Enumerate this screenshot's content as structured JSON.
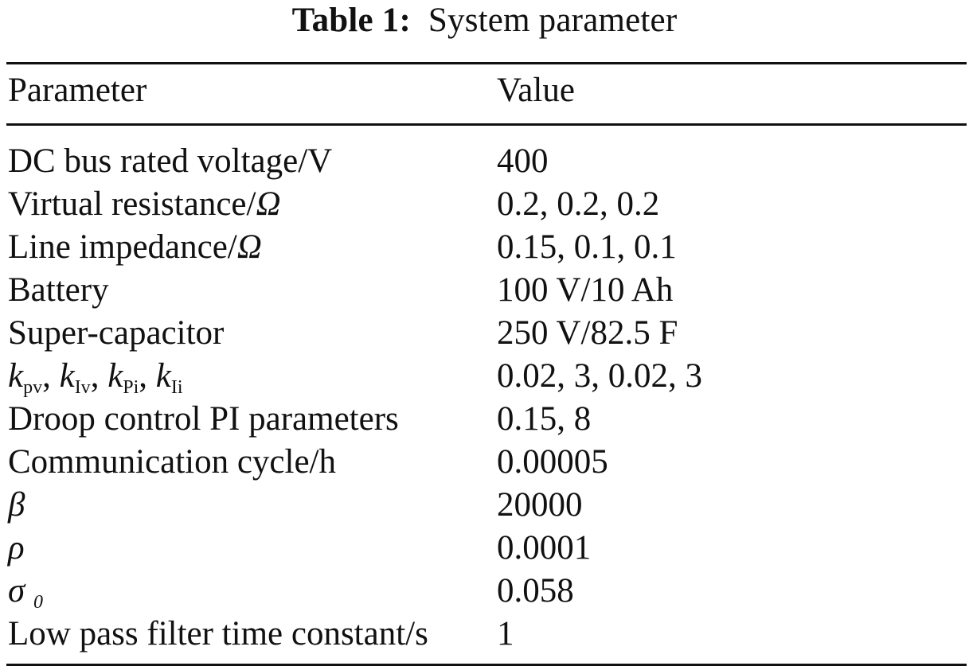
{
  "caption": {
    "label": "Table 1:",
    "title": "System parameter"
  },
  "table": {
    "headers": [
      "Parameter",
      "Value"
    ],
    "rows": [
      {
        "parameter": "DC bus rated voltage/V",
        "value": "400"
      },
      {
        "parameter_text": "Virtual resistance/",
        "parameter_symbol": "Ω",
        "value": "0.2, 0.2, 0.2"
      },
      {
        "parameter_text": "Line impedance/",
        "parameter_symbol": "Ω",
        "value": "0.15, 0.1, 0.1"
      },
      {
        "parameter": "Battery",
        "value": "100 V/10 Ah"
      },
      {
        "parameter": "Super-capacitor",
        "value": "250 V/82.5 F"
      },
      {
        "symbols": [
          {
            "base": "k",
            "sub": "pv"
          },
          {
            "base": "k",
            "sub": "Iv"
          },
          {
            "base": "k",
            "sub": "Pi"
          },
          {
            "base": "k",
            "sub": "Ii"
          }
        ],
        "separator": ", ",
        "value": "0.02, 3, 0.02, 3"
      },
      {
        "parameter": "Droop control PI parameters",
        "value": "0.15, 8"
      },
      {
        "parameter": "Communication cycle/h",
        "value": "0.00005"
      },
      {
        "parameter_symbol": "β",
        "value": "20000"
      },
      {
        "parameter_symbol": "ρ",
        "value": "0.0001"
      },
      {
        "parameter_symbol": "σ",
        "parameter_sub": "0",
        "value": "0.058"
      },
      {
        "parameter": "Low pass filter time constant/s",
        "value": "1"
      }
    ]
  }
}
